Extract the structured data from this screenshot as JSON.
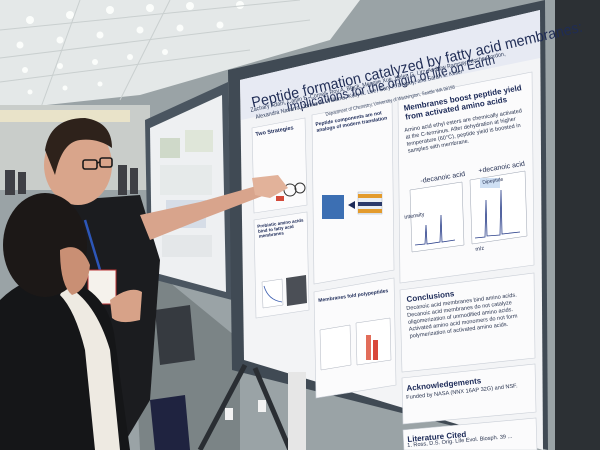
{
  "poster": {
    "title_line1": "Peptide formation catalyzed by fatty acid membranes:",
    "title_line2": "Implications for the origin of life on Earth",
    "authors": "Zachary Adam, Caitlin E. Cornell, Roy A. Black, Mengjie Xue, Helen G. Litz, Andrew Ramsay, Moshe Gordon,",
    "authors2": "Alexandra Navarro, James A. Williams, Kelly K. Lee, Gary P. Drobny, and Sarah L. Keller",
    "affiliation": "Department of Chemistry, University of Washington, Seattle WA 98195",
    "section_membranes": "Membranes boost peptide yield from activated amino acids",
    "membranes_text": "Amino acid ethyl esters are chemically activated at the C-terminus. After dehydration at higher temperature (60°C), peptide yield is boosted in samples with membrane.",
    "label_minus": "-decanoic acid",
    "label_plus": "+decanoic acid",
    "label_dipeptide": "Dipeptide",
    "label_intensity": "intensity",
    "label_mz": "m/z",
    "section_conclusions": "Conclusions",
    "conclusions_text": "Decanoic acid membranes bind amino acids. Decanoic acid membranes do not catalyze oligomerization of unmodified amino acids. Activated amino acid monomers do not form polymerization of activated amino acids.",
    "section_ack": "Acknowledgements",
    "ack_text": "Funded by NASA (NNX 16AP 32G) and NSF.",
    "section_lit": "Literature Cited",
    "lit_text": "1. Ross, D.S. Orig. Life Evol. Biosph. 39 ...",
    "section_intro": "Peptide components are not analogs of modern translation",
    "section_prebiotic": "Prebiotic amino acids bind to fatty acid membranes",
    "section_membr_fold": "Membranes fold polypeptides",
    "left_col_heading": "Two Strategies"
  },
  "colors": {
    "poster_bg": "#f4f5f7",
    "board_frame": "#4b5560",
    "ceiling": "#e9ecec",
    "carpet": "#5d6466"
  }
}
